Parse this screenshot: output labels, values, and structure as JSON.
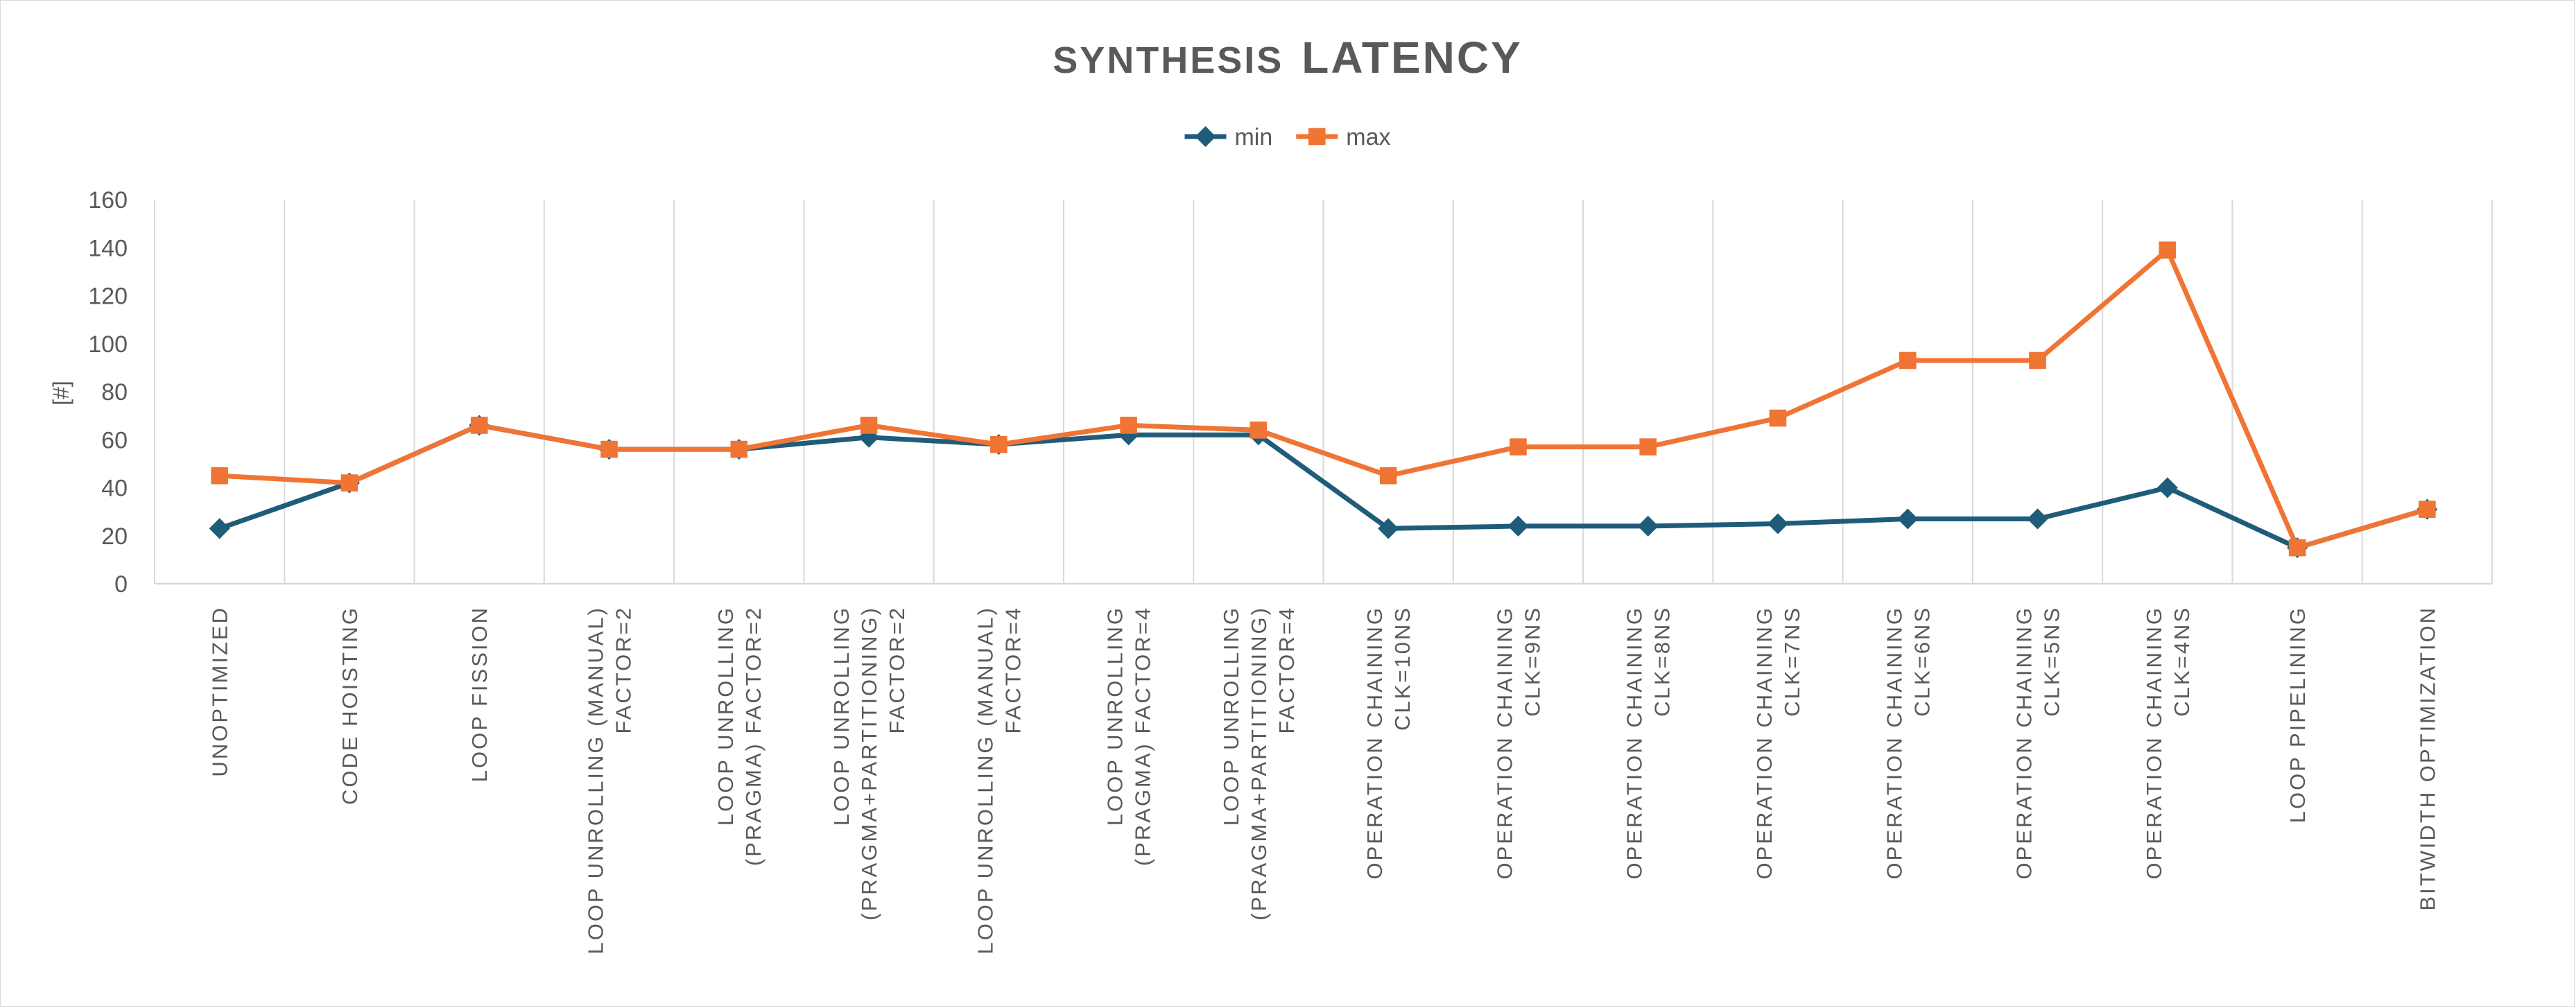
{
  "chart_data": {
    "type": "line",
    "title": "SYNTHESIS LATENCY",
    "title_parts": [
      "SYNTHESIS",
      "LATENCY"
    ],
    "ylabel": "[#]",
    "xlabel": "",
    "ylim": [
      0,
      160
    ],
    "ytick_step": 20,
    "yticks": [
      "0",
      "20",
      "40",
      "60",
      "80",
      "100",
      "120",
      "140",
      "160"
    ],
    "grid": "vertical",
    "legend_position": "top-center",
    "categories": [
      [
        "UNOPTIMIZED"
      ],
      [
        "CODE HOISTING"
      ],
      [
        "LOOP FISSION"
      ],
      [
        "LOOP UNROLLING (MANUAL)",
        "FACTOR=2"
      ],
      [
        "LOOP UNROLLING",
        "(PRAGMA) FACTOR=2"
      ],
      [
        "LOOP UNROLLING",
        "(PRAGMA+PARTITIONING)",
        "FACTOR=2"
      ],
      [
        "LOOP UNROLLING (MANUAL)",
        "FACTOR=4"
      ],
      [
        "LOOP UNROLLING",
        "(PRAGMA) FACTOR=4"
      ],
      [
        "LOOP UNROLLING",
        "(PRAGMA+PARTITIONING)",
        "FACTOR=4"
      ],
      [
        "OPERATION CHAINING",
        "CLK=10NS"
      ],
      [
        "OPERATION CHAINING",
        "CLK=9NS"
      ],
      [
        "OPERATION CHAINING",
        "CLK=8NS"
      ],
      [
        "OPERATION CHAINING",
        "CLK=7NS"
      ],
      [
        "OPERATION CHAINING",
        "CLK=6NS"
      ],
      [
        "OPERATION CHAINING",
        "CLK=5NS"
      ],
      [
        "OPERATION CHAINING",
        "CLK=4NS"
      ],
      [
        "LOOP PIPELINING"
      ],
      [
        "BITWIDTH OPTIMIZATION"
      ]
    ],
    "series": [
      {
        "name": "min",
        "color": "#1f5c7a",
        "marker": "diamond",
        "values": [
          23,
          42,
          66,
          56,
          56,
          61,
          58,
          62,
          62,
          23,
          24,
          24,
          25,
          27,
          27,
          40,
          15,
          31
        ]
      },
      {
        "name": "max",
        "color": "#f07434",
        "marker": "square",
        "values": [
          45,
          42,
          66,
          56,
          56,
          66,
          58,
          66,
          64,
          45,
          57,
          57,
          69,
          93,
          93,
          139,
          15,
          31
        ]
      }
    ]
  }
}
